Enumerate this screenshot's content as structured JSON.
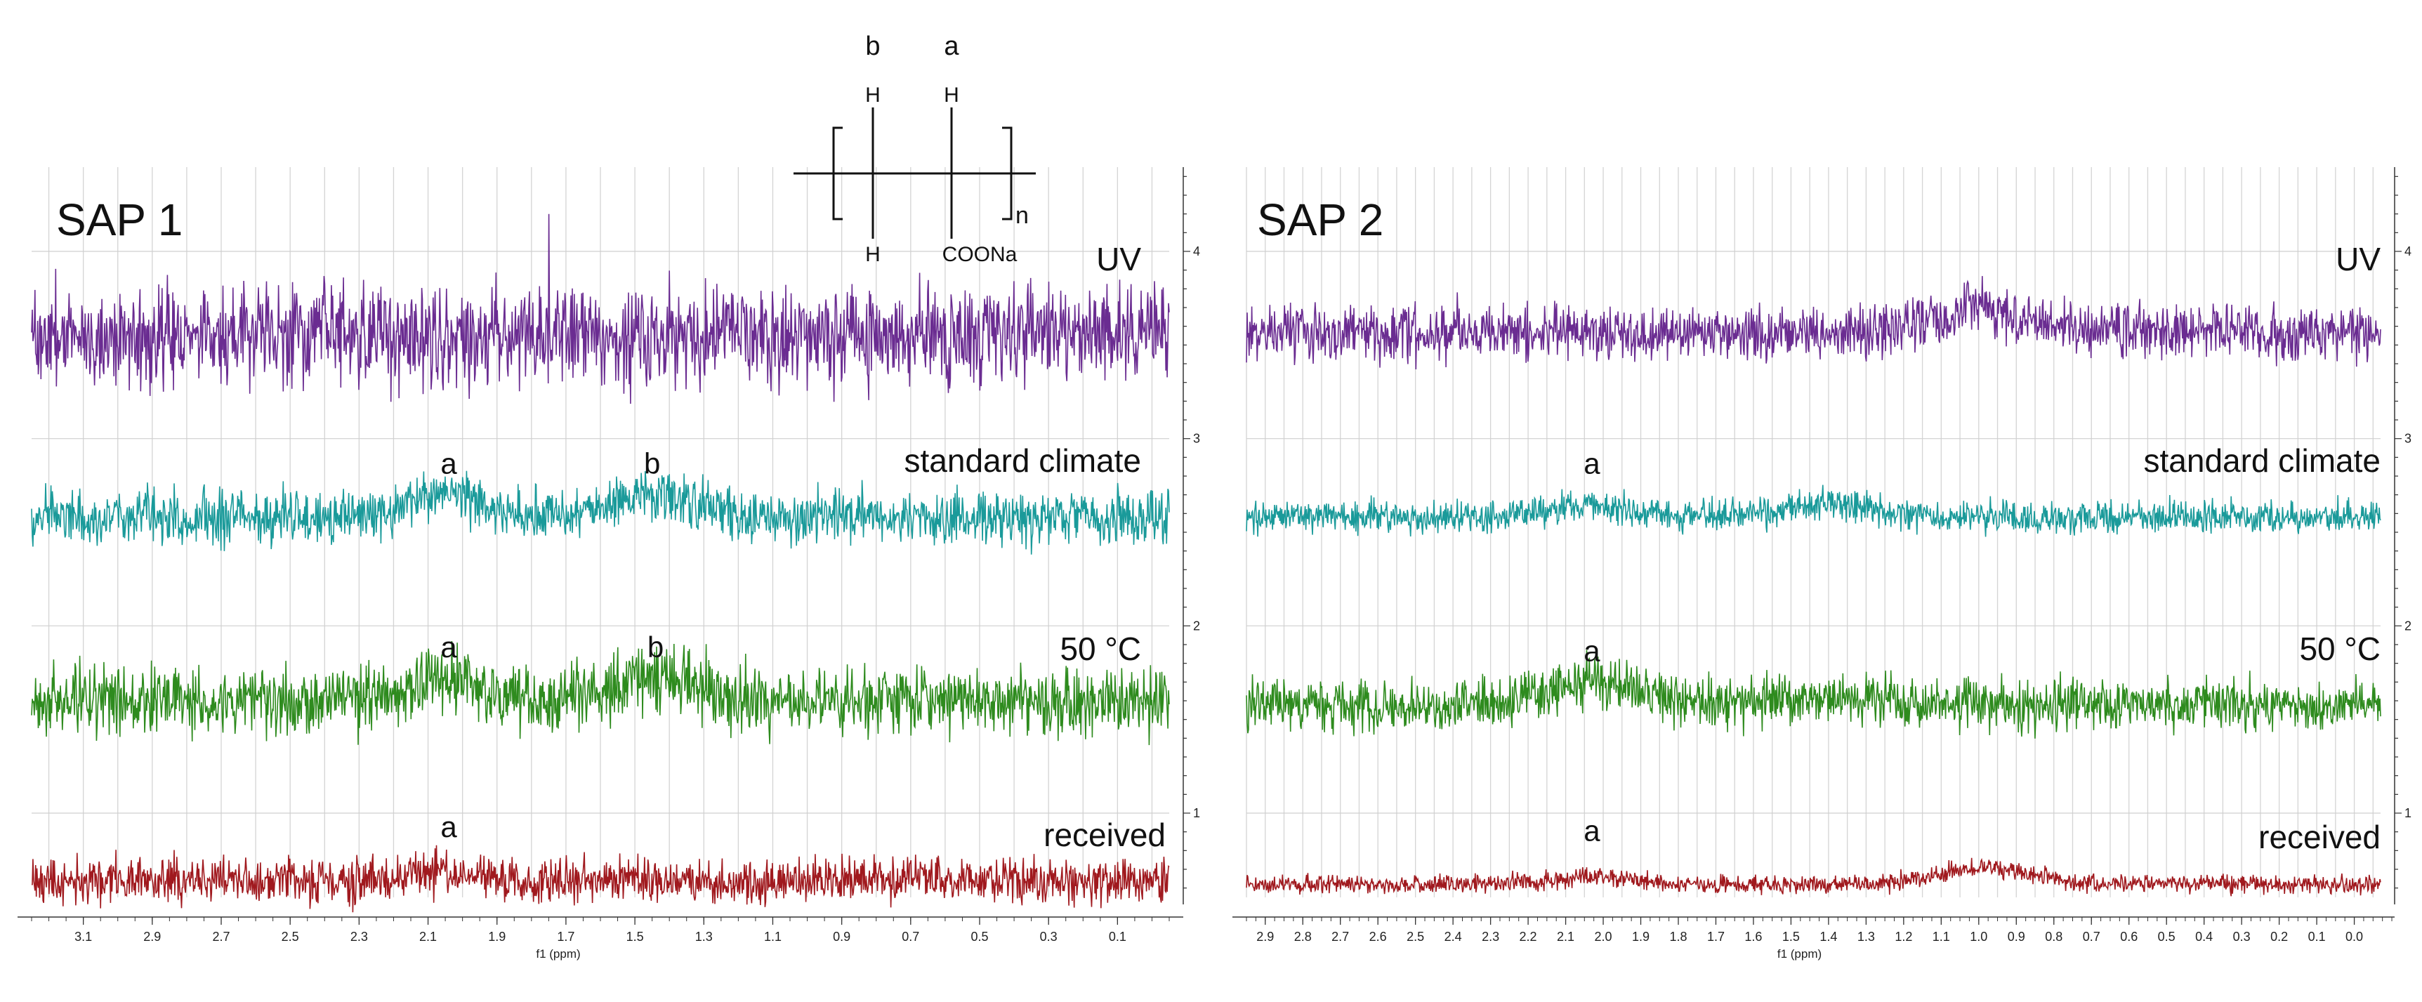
{
  "chart_data": [
    {
      "type": "line",
      "title": "SAP 1",
      "xlabel": "f1 (ppm)",
      "ylabel": "",
      "xlim": [
        3.25,
        -0.05
      ],
      "x_reversed": true,
      "x_ticks": [
        "3.1",
        "2.9",
        "2.7",
        "2.5",
        "2.3",
        "2.1",
        "1.9",
        "1.7",
        "1.5",
        "1.3",
        "1.1",
        "0.9",
        "0.7",
        "0.5",
        "0.3",
        "0.1"
      ],
      "ylim": [
        0.55,
        4.45
      ],
      "y_ticks": [
        "1",
        "2",
        "3",
        "4"
      ],
      "grid": true,
      "series": [
        {
          "name": "UV",
          "color": "#6a2c91",
          "baseline": 3.55,
          "noise": 0.22,
          "peaks": [],
          "spike_x": 1.75,
          "spike_y": 4.2,
          "peak_labels": []
        },
        {
          "name": "standard climate",
          "color": "#1a9a9a",
          "baseline": 2.58,
          "noise": 0.12,
          "peaks": [
            {
              "x": 2.05,
              "h": 0.12
            },
            {
              "x": 1.45,
              "h": 0.12
            }
          ],
          "peak_labels": [
            {
              "text": "a",
              "x": 2.04
            },
            {
              "text": "b",
              "x": 1.45
            }
          ]
        },
        {
          "name": "50 °C",
          "color": "#2e8b1e",
          "baseline": 1.6,
          "noise": 0.15,
          "peaks": [
            {
              "x": 2.05,
              "h": 0.12
            },
            {
              "x": 1.43,
              "h": 0.14
            }
          ],
          "peak_labels": [
            {
              "text": "a",
              "x": 2.04
            },
            {
              "text": "b",
              "x": 1.44
            }
          ]
        },
        {
          "name": "received",
          "color": "#a0191e",
          "baseline": 0.64,
          "noise": 0.1,
          "peaks": [
            {
              "x": 2.05,
              "h": 0.04
            }
          ],
          "peak_labels": [
            {
              "text": "a",
              "x": 2.04
            }
          ]
        }
      ]
    },
    {
      "type": "line",
      "title": "SAP 2",
      "xlabel": "f1 (ppm)",
      "ylabel": "",
      "xlim": [
        2.95,
        -0.07
      ],
      "x_reversed": true,
      "x_ticks": [
        "2.9",
        "2.8",
        "2.7",
        "2.6",
        "2.5",
        "2.4",
        "2.3",
        "2.2",
        "2.1",
        "2.0",
        "1.9",
        "1.8",
        "1.7",
        "1.6",
        "1.5",
        "1.4",
        "1.3",
        "1.2",
        "1.1",
        "1.0",
        "0.9",
        "0.8",
        "0.7",
        "0.6",
        "0.5",
        "0.4",
        "0.3",
        "0.2",
        "0.1",
        "0.0"
      ],
      "ylim": [
        0.55,
        4.45
      ],
      "y_ticks": [
        "1",
        "2",
        "3",
        "4"
      ],
      "grid": true,
      "series": [
        {
          "name": "UV",
          "color": "#6a2c91",
          "baseline": 3.57,
          "noise": 0.12,
          "peaks": [
            {
              "x": 1.0,
              "h": 0.12
            }
          ],
          "peak_labels": []
        },
        {
          "name": "standard climate",
          "color": "#1a9a9a",
          "baseline": 2.58,
          "noise": 0.07,
          "peaks": [
            {
              "x": 2.03,
              "h": 0.06
            },
            {
              "x": 1.42,
              "h": 0.07
            }
          ],
          "peak_labels": [
            {
              "text": "a",
              "x": 2.03
            }
          ]
        },
        {
          "name": "50 °C",
          "color": "#2e8b1e",
          "baseline": 1.58,
          "noise": 0.11,
          "peaks": [
            {
              "x": 2.03,
              "h": 0.12
            },
            {
              "x": 1.4,
              "h": 0.05
            }
          ],
          "peak_labels": [
            {
              "text": "a",
              "x": 2.03
            }
          ]
        },
        {
          "name": "received",
          "color": "#a0191e",
          "baseline": 0.62,
          "noise": 0.04,
          "peaks": [
            {
              "x": 2.03,
              "h": 0.04
            },
            {
              "x": 0.98,
              "h": 0.09
            }
          ],
          "peak_labels": [
            {
              "text": "a",
              "x": 2.03
            }
          ]
        }
      ]
    }
  ],
  "structure": {
    "top_labels": [
      "b",
      "a"
    ],
    "h_top": "H",
    "h_bottom": "H",
    "subscript": "n",
    "substituent": "COONa"
  }
}
